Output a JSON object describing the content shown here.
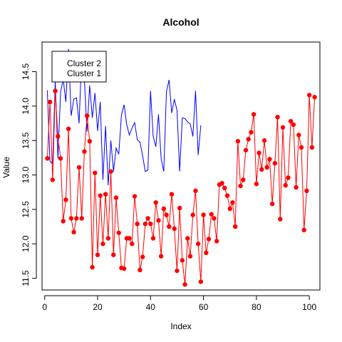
{
  "chart_data": {
    "type": "line",
    "title": "Alcohol",
    "xlabel": "Index",
    "ylabel": "Value",
    "xlim": [
      -1,
      104
    ],
    "ylim": [
      11.33,
      14.93
    ],
    "xticks": [
      0,
      20,
      40,
      60,
      80,
      100
    ],
    "yticks": [
      11.5,
      12.0,
      12.5,
      13.0,
      13.5,
      14.0,
      14.5
    ],
    "ytick_labels": [
      "11.5",
      "12.0",
      "12.5",
      "13.0",
      "13.5",
      "14.0",
      "14.5"
    ],
    "grid": false,
    "legend": {
      "placement": "top-left",
      "entries": [
        "Cluster 2",
        "Cluster 1"
      ]
    },
    "series": [
      {
        "name": "Cluster 1",
        "color": "#0000ff",
        "marker": "none",
        "x": [
          1,
          2,
          3,
          4,
          5,
          6,
          7,
          8,
          9,
          10,
          11,
          12,
          13,
          14,
          15,
          16,
          17,
          18,
          19,
          20,
          21,
          22,
          23,
          24,
          25,
          26,
          27,
          28,
          29,
          30,
          31,
          32,
          33,
          34,
          35,
          36,
          37,
          38,
          39,
          40,
          41,
          42,
          43,
          44,
          45,
          46,
          47,
          48,
          49,
          50,
          51,
          52,
          53,
          54,
          55,
          56,
          57,
          58,
          59
        ],
        "y": [
          14.23,
          13.2,
          13.16,
          14.37,
          13.24,
          14.2,
          14.39,
          14.06,
          14.83,
          13.86,
          14.1,
          14.12,
          13.75,
          14.75,
          14.38,
          13.63,
          14.3,
          13.83,
          14.19,
          13.64,
          14.06,
          12.93,
          13.71,
          12.85,
          13.5,
          13.05,
          13.39,
          13.3,
          13.87,
          14.02,
          13.73,
          13.58,
          13.68,
          13.76,
          13.51,
          13.48,
          13.28,
          13.05,
          13.07,
          14.22,
          13.56,
          13.41,
          13.88,
          13.24,
          13.05,
          14.21,
          14.38,
          13.9,
          14.1,
          13.94,
          13.05,
          13.83,
          13.82,
          13.77,
          13.74,
          13.56,
          14.22,
          13.29,
          13.72
        ]
      },
      {
        "name": "Cluster 2",
        "color": "#ff0000",
        "marker": "filled-circle",
        "x": [
          1,
          2,
          3,
          4,
          5,
          6,
          7,
          8,
          9,
          10,
          11,
          12,
          13,
          14,
          15,
          16,
          17,
          18,
          19,
          20,
          21,
          22,
          23,
          24,
          25,
          26,
          27,
          28,
          29,
          30,
          31,
          32,
          33,
          34,
          35,
          36,
          37,
          38,
          39,
          40,
          41,
          42,
          43,
          44,
          45,
          46,
          47,
          48,
          49,
          50,
          51,
          52,
          53,
          54,
          55,
          56,
          57,
          58,
          59,
          60,
          61,
          62,
          63,
          64,
          65,
          66,
          67,
          68,
          69,
          70,
          71,
          72,
          73,
          74,
          75,
          76,
          77,
          78,
          79,
          80,
          81,
          82,
          83,
          84,
          85,
          86,
          87,
          88,
          89,
          90,
          91,
          92,
          93,
          94,
          95,
          96,
          97,
          98,
          99,
          100,
          101,
          102
        ],
        "y": [
          13.24,
          14.06,
          12.93,
          14.22,
          13.56,
          13.24,
          12.33,
          12.64,
          13.67,
          12.37,
          12.17,
          12.37,
          13.11,
          12.37,
          13.34,
          13.86,
          13.49,
          11.66,
          13.03,
          11.84,
          12.7,
          12.0,
          12.72,
          12.08,
          13.05,
          11.84,
          12.67,
          12.16,
          11.65,
          11.64,
          12.08,
          12.08,
          12.0,
          12.69,
          12.29,
          11.62,
          11.81,
          12.29,
          12.37,
          12.29,
          12.08,
          12.6,
          12.34,
          11.82,
          12.51,
          12.42,
          12.25,
          12.72,
          12.22,
          11.61,
          12.52,
          11.76,
          11.41,
          12.08,
          11.82,
          12.42,
          12.77,
          12.0,
          11.45,
          12.42,
          11.87,
          12.07,
          12.43,
          12.37,
          12.04,
          12.86,
          12.88,
          12.81,
          12.7,
          12.51,
          12.6,
          12.25,
          13.49,
          12.84,
          12.93,
          13.36,
          13.52,
          13.62,
          13.88,
          12.87,
          13.32,
          13.08,
          13.5,
          13.11,
          13.23,
          12.58,
          13.17,
          13.84,
          12.36,
          13.69,
          12.85,
          12.96,
          13.78,
          13.73,
          12.82,
          13.58,
          13.4,
          12.2,
          12.77,
          14.16,
          13.4,
          14.13
        ]
      }
    ]
  }
}
